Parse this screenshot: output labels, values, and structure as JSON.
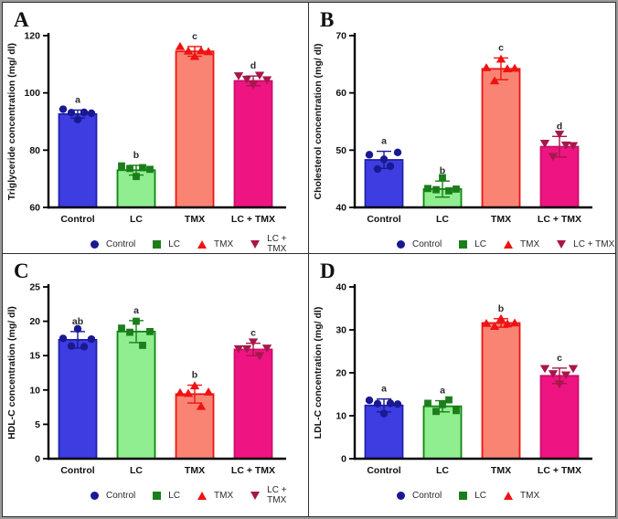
{
  "figure": {
    "groups": [
      {
        "name": "Control",
        "fill": "#3D3DE2",
        "edge": "#2121AE",
        "marker": "circle",
        "marker_color": "#191992"
      },
      {
        "name": "LC",
        "fill": "#90EE90",
        "edge": "#0F850F",
        "marker": "square",
        "marker_color": "#1B7E1B"
      },
      {
        "name": "TMX",
        "fill": "#FA8474",
        "edge": "#EE1312",
        "marker": "triangle-up",
        "marker_color": "#EE1312"
      },
      {
        "name": "LC + TMX",
        "fill": "#EE1482",
        "edge": "#C9106B",
        "marker": "triangle-down",
        "marker_color": "#A6184A"
      }
    ],
    "text_color": "#111111",
    "sig_color": "#2a2a2a"
  },
  "chart_data": [
    {
      "type": "bar",
      "letter": "A",
      "ylabel": "Triglyceride concentration (mg/ dl)",
      "ylim": [
        60,
        120
      ],
      "yticks": [
        60,
        80,
        100,
        120
      ],
      "categories": [
        "Control",
        "LC",
        "TMX",
        "LC + TMX"
      ],
      "bars": [
        {
          "group": "Control",
          "mean": 92.6,
          "err": 1.4,
          "sig": "a",
          "points": [
            94.3,
            93.1,
            90.7,
            93.2,
            92.9
          ]
        },
        {
          "group": "LC",
          "mean": 73.0,
          "err": 1.7,
          "sig": "b",
          "points": [
            74.5,
            73.6,
            70.8,
            73.9,
            73.3
          ]
        },
        {
          "group": "TMX",
          "mean": 114.5,
          "err": 1.7,
          "sig": "c",
          "points": [
            116.2,
            114.6,
            112.7,
            114.7,
            114.4
          ]
        },
        {
          "group": "LC + TMX",
          "mean": 104.2,
          "err": 1.7,
          "sig": "d",
          "points": [
            106.0,
            104.8,
            102.9,
            106.2,
            104.6
          ]
        }
      ],
      "legend": [
        "Control",
        "LC",
        "TMX",
        "LC + TMX"
      ]
    },
    {
      "type": "bar",
      "letter": "B",
      "ylabel": "Cholesterol concentration (mg/ dl)",
      "ylim": [
        40,
        70
      ],
      "yticks": [
        40,
        50,
        60,
        70
      ],
      "categories": [
        "Control",
        "LC",
        "TMX",
        "LC + TMX"
      ],
      "bars": [
        {
          "group": "Control",
          "mean": 48.3,
          "err": 1.5,
          "sig": "a",
          "points": [
            49.2,
            46.7,
            48.4,
            47.2,
            49.6
          ]
        },
        {
          "group": "LC",
          "mean": 43.2,
          "err": 1.4,
          "sig": "b",
          "points": [
            43.3,
            43.1,
            45.2,
            42.9,
            43.2
          ]
        },
        {
          "group": "TMX",
          "mean": 64.2,
          "err": 1.9,
          "sig": "c",
          "points": [
            64.4,
            62.1,
            65.9,
            64.2,
            64.3
          ]
        },
        {
          "group": "LC + TMX",
          "mean": 50.6,
          "err": 1.8,
          "sig": "d",
          "points": [
            51.2,
            48.9,
            52.8,
            50.9,
            50.8
          ]
        }
      ],
      "legend": [
        "Control",
        "LC",
        "TMX",
        "LC + TMX"
      ]
    },
    {
      "type": "bar",
      "letter": "C",
      "ylabel": "HDL-C concentration (mg/ dl)",
      "ylim": [
        0,
        25
      ],
      "yticks": [
        0,
        5,
        10,
        15,
        20,
        25
      ],
      "categories": [
        "Control",
        "LC",
        "TMX",
        "LC + TMX"
      ],
      "bars": [
        {
          "group": "Control",
          "mean": 17.3,
          "err": 1.2,
          "sig": "ab",
          "points": [
            17.5,
            16.4,
            18.9,
            16.3,
            17.4
          ]
        },
        {
          "group": "LC",
          "mean": 18.5,
          "err": 1.6,
          "sig": "a",
          "points": [
            19.0,
            18.4,
            20.0,
            16.5,
            18.5
          ]
        },
        {
          "group": "TMX",
          "mean": 9.4,
          "err": 1.3,
          "sig": "b",
          "points": [
            9.6,
            9.5,
            10.6,
            7.6,
            9.7
          ]
        },
        {
          "group": "LC + TMX",
          "mean": 15.9,
          "err": 0.9,
          "sig": "c",
          "points": [
            16.0,
            16.0,
            17.0,
            15.0,
            16.1
          ]
        }
      ],
      "legend": [
        "Control",
        "LC",
        "TMX",
        "LC + TMX"
      ]
    },
    {
      "type": "bar",
      "letter": "D",
      "ylabel": "LDL-C concentration (mg/ dl)",
      "ylim": [
        0,
        40
      ],
      "yticks": [
        0,
        10,
        20,
        30,
        40
      ],
      "categories": [
        "Control",
        "LC",
        "TMX",
        "LC + TMX"
      ],
      "bars": [
        {
          "group": "Control",
          "mean": 12.4,
          "err": 1.5,
          "sig": "a",
          "points": [
            13.6,
            12.8,
            10.5,
            12.9,
            12.7
          ]
        },
        {
          "group": "LC",
          "mean": 12.2,
          "err": 1.3,
          "sig": "a",
          "points": [
            12.9,
            11.0,
            12.6,
            13.7,
            11.2
          ]
        },
        {
          "group": "TMX",
          "mean": 31.6,
          "err": 1.0,
          "sig": "b",
          "points": [
            31.5,
            30.8,
            32.6,
            31.4,
            31.6
          ]
        },
        {
          "group": "LC + TMX",
          "mean": 19.3,
          "err": 1.8,
          "sig": "c",
          "points": [
            21.0,
            19.8,
            17.4,
            19.5,
            21.0
          ]
        }
      ],
      "legend": [
        "Control",
        "LC",
        "TMX"
      ]
    }
  ]
}
